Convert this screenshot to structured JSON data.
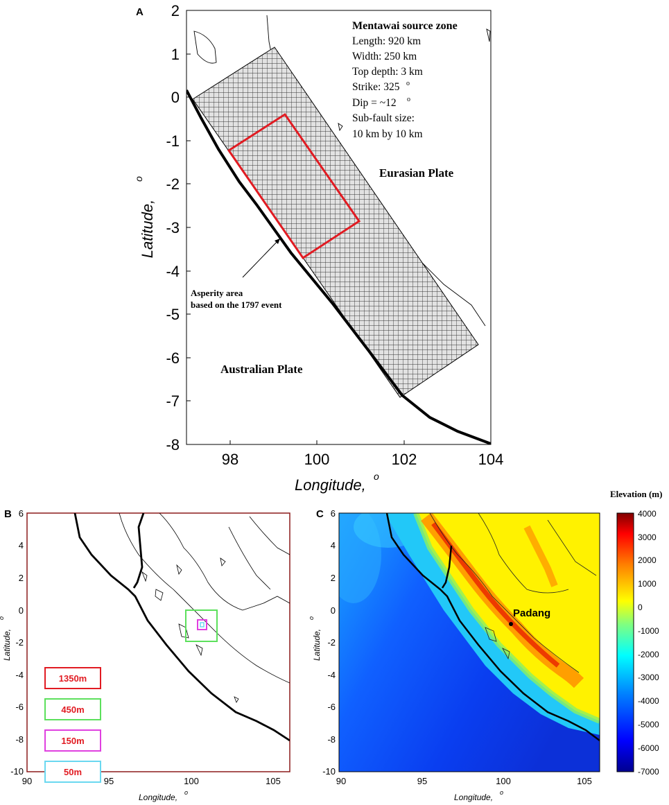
{
  "panelA": {
    "label": "A",
    "xlabel": "Longitude,",
    "ylabel": "Latitude,",
    "deg": "o",
    "xticks": [
      "98",
      "100",
      "102",
      "104"
    ],
    "yticks": [
      "2",
      "1",
      "0",
      "-1",
      "-2",
      "-3",
      "-4",
      "-5",
      "-6",
      "-7",
      "-8"
    ],
    "info_title": "Mentawai source zone",
    "info_lines": [
      "Length: 920 km",
      "Width: 250 km",
      "Top depth: 3 km",
      "Strike: 325",
      "Dip = ~12",
      "Sub-fault size:",
      "10 km by 10 km"
    ],
    "info_sup": "o",
    "eurasian": "Eurasian Plate",
    "australian": "Australian Plate",
    "asperity_line1": "Asperity area",
    "asperity_line2": "based on the 1797 event",
    "grid_color": "#333333",
    "asperity_color": "#e11b22"
  },
  "panelB": {
    "label": "B",
    "xlabel": "Longitude,",
    "ylabel": "Latitude,",
    "deg": "o",
    "xticks": [
      "90",
      "95",
      "100",
      "105"
    ],
    "yticks": [
      "6",
      "4",
      "2",
      "0",
      "-2",
      "-4",
      "-6",
      "-8",
      "-10"
    ],
    "legend": [
      {
        "label": "1350m",
        "color": "#e11b22"
      },
      {
        "label": "450m",
        "color": "#5ce05c"
      },
      {
        "label": "150m",
        "color": "#e040e0"
      },
      {
        "label": "50m",
        "color": "#6ad8f0"
      }
    ],
    "frame_color": "#8b1a1a"
  },
  "panelC": {
    "label": "C",
    "xlabel": "Longitude,",
    "ylabel": "Latitude,",
    "deg": "o",
    "xticks": [
      "90",
      "95",
      "100",
      "105"
    ],
    "yticks": [
      "6",
      "4",
      "2",
      "0",
      "-2",
      "-4",
      "-6",
      "-8",
      "-10"
    ],
    "city": "Padang",
    "colorbar_title": "Elevation (m)",
    "colorbar_ticks": [
      "4000",
      "3000",
      "2000",
      "1000",
      "0",
      "-1000",
      "-2000",
      "-3000",
      "-4000",
      "-5000",
      "-6000",
      "-7000"
    ]
  }
}
